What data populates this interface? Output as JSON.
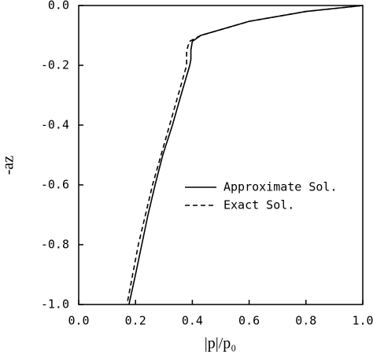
{
  "chart_data": {
    "type": "line",
    "xlabel": "|p|/p₀",
    "ylabel": "-az",
    "xlim": [
      0,
      1
    ],
    "ylim": [
      -1,
      0
    ],
    "xticks": [
      {
        "value": 0,
        "label": "0.0"
      },
      {
        "value": 0.2,
        "label": "0.2"
      },
      {
        "value": 0.4,
        "label": "0.4"
      },
      {
        "value": 0.6,
        "label": "0.6"
      },
      {
        "value": 0.8,
        "label": "0.8"
      },
      {
        "value": 1,
        "label": "1.0"
      }
    ],
    "yticks": [
      {
        "value": 0,
        "label": "0.0"
      },
      {
        "value": -0.2,
        "label": "-0.2"
      },
      {
        "value": -0.4,
        "label": "-0.4"
      },
      {
        "value": -0.6,
        "label": "-0.6"
      },
      {
        "value": -0.8,
        "label": "-0.8"
      },
      {
        "value": -1,
        "label": "-1.0"
      }
    ],
    "series": [
      {
        "name": "Approximate Sol.",
        "color": "#000000",
        "linestyle": "solid",
        "x": [
          1.0,
          0.8,
          0.6,
          0.43,
          0.4,
          0.395,
          0.395,
          0.391,
          0.36,
          0.33,
          0.296,
          0.269,
          0.244,
          0.222,
          0.2,
          0.177
        ],
        "y": [
          0,
          -0.02,
          -0.053,
          -0.1,
          -0.12,
          -0.15,
          -0.18,
          -0.2,
          -0.3,
          -0.4,
          -0.5,
          -0.6,
          -0.7,
          -0.8,
          -0.9,
          -1.0
        ]
      },
      {
        "name": "Exact Sol.",
        "color": "#000000",
        "linestyle": "dashed",
        "x": [
          1.0,
          0.8,
          0.6,
          0.43,
          0.39,
          0.38,
          0.38,
          0.35,
          0.32,
          0.29,
          0.26,
          0.235,
          0.21,
          0.19,
          0.17
        ],
        "y": [
          0,
          -0.02,
          -0.053,
          -0.1,
          -0.12,
          -0.15,
          -0.2,
          -0.3,
          -0.4,
          -0.5,
          -0.6,
          -0.7,
          -0.8,
          -0.9,
          -1.0
        ]
      }
    ],
    "legend": "center-right"
  }
}
